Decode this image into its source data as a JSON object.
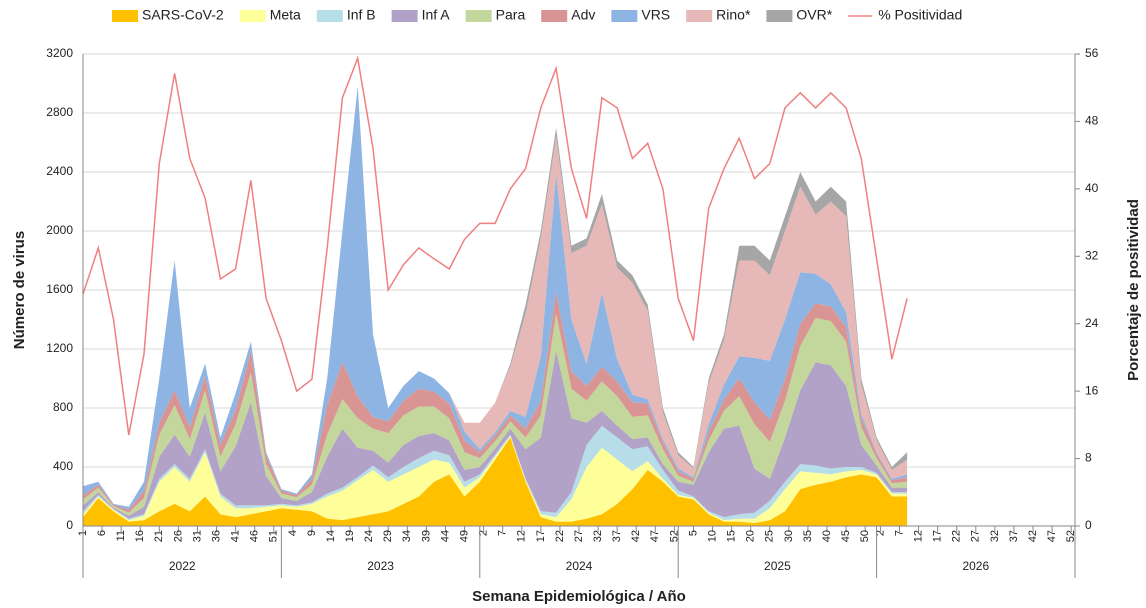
{
  "chart_data": {
    "type": "stacked-area",
    "y_label": "Número de virus",
    "y2_label": "Porcentaje de positividad",
    "x_label": "Semana Epidemiológica / Año",
    "grid": true,
    "legend": "top",
    "xlim": [
      0,
      260
    ],
    "ylim": [
      0,
      3200
    ],
    "yticks": [
      0,
      400,
      800,
      1200,
      1600,
      2000,
      2400,
      2800,
      3200
    ],
    "y2lim": [
      0,
      56
    ],
    "y2ticks": [
      0,
      8,
      16,
      24,
      32,
      40,
      48,
      56
    ],
    "x_groups": [
      {
        "label": "2022",
        "start": 0,
        "end": 52
      },
      {
        "label": "2023",
        "start": 52,
        "end": 104
      },
      {
        "label": "2024",
        "start": 104,
        "end": 156
      },
      {
        "label": "2025",
        "start": 156,
        "end": 208
      },
      {
        "label": "2026",
        "start": 208,
        "end": 260
      }
    ],
    "xticks": [
      {
        "value": 0,
        "label": "1"
      },
      {
        "value": 5,
        "label": "6"
      },
      {
        "value": 10,
        "label": "11"
      },
      {
        "value": 15,
        "label": "16"
      },
      {
        "value": 20,
        "label": "21"
      },
      {
        "value": 25,
        "label": "26"
      },
      {
        "value": 30,
        "label": "31"
      },
      {
        "value": 35,
        "label": "36"
      },
      {
        "value": 40,
        "label": "41"
      },
      {
        "value": 45,
        "label": "46"
      },
      {
        "value": 50,
        "label": "51"
      },
      {
        "value": 55,
        "label": "4"
      },
      {
        "value": 60,
        "label": "9"
      },
      {
        "value": 65,
        "label": "14"
      },
      {
        "value": 70,
        "label": "19"
      },
      {
        "value": 75,
        "label": "24"
      },
      {
        "value": 80,
        "label": "29"
      },
      {
        "value": 85,
        "label": "34"
      },
      {
        "value": 90,
        "label": "39"
      },
      {
        "value": 95,
        "label": "44"
      },
      {
        "value": 100,
        "label": "49"
      },
      {
        "value": 105,
        "label": "2"
      },
      {
        "value": 110,
        "label": "7"
      },
      {
        "value": 115,
        "label": "12"
      },
      {
        "value": 120,
        "label": "17"
      },
      {
        "value": 125,
        "label": "22"
      },
      {
        "value": 130,
        "label": "27"
      },
      {
        "value": 135,
        "label": "32"
      },
      {
        "value": 140,
        "label": "37"
      },
      {
        "value": 145,
        "label": "42"
      },
      {
        "value": 150,
        "label": "47"
      },
      {
        "value": 155,
        "label": "52"
      },
      {
        "value": 160,
        "label": "5"
      },
      {
        "value": 165,
        "label": "10"
      },
      {
        "value": 170,
        "label": "15"
      },
      {
        "value": 175,
        "label": "20"
      },
      {
        "value": 180,
        "label": "25"
      },
      {
        "value": 185,
        "label": "30"
      },
      {
        "value": 190,
        "label": "35"
      },
      {
        "value": 195,
        "label": "40"
      },
      {
        "value": 200,
        "label": "45"
      },
      {
        "value": 205,
        "label": "50"
      },
      {
        "value": 209,
        "label": "2"
      },
      {
        "value": 214,
        "label": "7"
      },
      {
        "value": 219,
        "label": "12"
      },
      {
        "value": 224,
        "label": "17"
      },
      {
        "value": 229,
        "label": "22"
      },
      {
        "value": 234,
        "label": "27"
      },
      {
        "value": 239,
        "label": "32"
      },
      {
        "value": 244,
        "label": "37"
      },
      {
        "value": 249,
        "label": "42"
      },
      {
        "value": 254,
        "label": "47"
      },
      {
        "value": 259,
        "label": "52"
      }
    ],
    "x": [
      0,
      4,
      8,
      12,
      16,
      20,
      24,
      28,
      32,
      36,
      40,
      44,
      48,
      52,
      56,
      60,
      64,
      68,
      72,
      76,
      80,
      84,
      88,
      92,
      96,
      100,
      104,
      108,
      112,
      116,
      120,
      124,
      128,
      132,
      136,
      140,
      144,
      148,
      152,
      156,
      160,
      164,
      168,
      172,
      176,
      180,
      184,
      188,
      192,
      196,
      200,
      204,
      208,
      212,
      216
    ],
    "series": [
      {
        "name": "SARS-CoV-2",
        "color": "#ffc000",
        "values": [
          60,
          190,
          100,
          30,
          40,
          100,
          150,
          100,
          200,
          80,
          60,
          80,
          100,
          120,
          110,
          100,
          50,
          40,
          60,
          80,
          100,
          150,
          200,
          300,
          350,
          200,
          300,
          450,
          600,
          300,
          60,
          30,
          30,
          50,
          80,
          150,
          250,
          380,
          300,
          200,
          180,
          80,
          30,
          30,
          20,
          40,
          100,
          250,
          280,
          300,
          330,
          350,
          330,
          200,
          200
        ]
      },
      {
        "name": "Meta",
        "color": "#ffff99",
        "values": [
          20,
          10,
          10,
          10,
          30,
          200,
          250,
          200,
          300,
          120,
          60,
          40,
          30,
          20,
          20,
          50,
          150,
          200,
          250,
          300,
          200,
          200,
          200,
          150,
          80,
          60,
          30,
          20,
          10,
          10,
          20,
          30,
          150,
          350,
          450,
          300,
          120,
          60,
          20,
          10,
          10,
          10,
          10,
          20,
          30,
          80,
          150,
          120,
          80,
          50,
          40,
          30,
          20,
          20,
          20
        ]
      },
      {
        "name": "Inf B",
        "color": "#b7dee8",
        "values": [
          20,
          10,
          5,
          10,
          10,
          20,
          20,
          20,
          20,
          20,
          20,
          20,
          10,
          10,
          10,
          10,
          20,
          20,
          20,
          30,
          30,
          50,
          60,
          60,
          50,
          40,
          20,
          15,
          10,
          10,
          20,
          30,
          50,
          150,
          150,
          150,
          150,
          100,
          60,
          30,
          10,
          10,
          20,
          30,
          40,
          50,
          50,
          50,
          50,
          40,
          30,
          20,
          10,
          10,
          10
        ]
      },
      {
        "name": "Inf A",
        "color": "#b3a2c7",
        "values": [
          40,
          20,
          10,
          20,
          50,
          150,
          200,
          150,
          250,
          150,
          400,
          700,
          200,
          40,
          30,
          70,
          250,
          400,
          200,
          100,
          100,
          150,
          150,
          120,
          100,
          80,
          50,
          40,
          40,
          200,
          500,
          1100,
          500,
          150,
          100,
          80,
          70,
          60,
          40,
          60,
          80,
          400,
          600,
          600,
          300,
          150,
          300,
          500,
          700,
          700,
          550,
          150,
          50,
          30,
          30
        ]
      },
      {
        "name": "Para",
        "color": "#c3d69b",
        "values": [
          40,
          30,
          10,
          20,
          60,
          150,
          200,
          120,
          150,
          100,
          150,
          200,
          80,
          30,
          25,
          50,
          150,
          200,
          200,
          150,
          200,
          200,
          200,
          180,
          150,
          120,
          60,
          50,
          50,
          80,
          150,
          250,
          200,
          150,
          200,
          200,
          150,
          150,
          100,
          40,
          20,
          80,
          120,
          200,
          300,
          250,
          250,
          300,
          300,
          300,
          300,
          120,
          50,
          30,
          40
        ]
      },
      {
        "name": "Adv",
        "color": "#d99594",
        "values": [
          30,
          20,
          10,
          20,
          50,
          80,
          100,
          80,
          100,
          80,
          100,
          150,
          60,
          20,
          15,
          40,
          200,
          250,
          150,
          80,
          80,
          100,
          120,
          100,
          100,
          80,
          40,
          40,
          40,
          60,
          100,
          150,
          120,
          100,
          100,
          100,
          100,
          80,
          50,
          30,
          20,
          60,
          80,
          120,
          150,
          150,
          150,
          150,
          100,
          100,
          100,
          60,
          30,
          20,
          30
        ]
      },
      {
        "name": "VRS",
        "color": "#8db4e2",
        "values": [
          60,
          20,
          5,
          20,
          60,
          300,
          880,
          130,
          80,
          50,
          110,
          60,
          20,
          10,
          10,
          30,
          180,
          890,
          2100,
          560,
          90,
          100,
          120,
          90,
          70,
          60,
          20,
          20,
          30,
          80,
          300,
          800,
          350,
          150,
          500,
          150,
          50,
          30,
          20,
          20,
          10,
          50,
          100,
          150,
          300,
          400,
          400,
          350,
          200,
          150,
          100,
          30,
          10,
          10,
          20
        ]
      },
      {
        "name": "Rino*",
        "color": "#e6b9b8",
        "values": [
          0,
          0,
          0,
          0,
          0,
          0,
          0,
          0,
          0,
          0,
          0,
          0,
          0,
          0,
          0,
          0,
          0,
          0,
          0,
          0,
          0,
          0,
          0,
          0,
          0,
          60,
          180,
          200,
          300,
          700,
          800,
          250,
          450,
          800,
          600,
          620,
          760,
          600,
          180,
          90,
          60,
          280,
          300,
          650,
          660,
          580,
          600,
          580,
          400,
          560,
          650,
          200,
          80,
          60,
          100
        ]
      },
      {
        "name": "OVR*",
        "color": "#a6a6a6",
        "values": [
          0,
          0,
          0,
          0,
          0,
          0,
          0,
          0,
          0,
          0,
          0,
          0,
          0,
          0,
          0,
          0,
          0,
          0,
          0,
          0,
          0,
          0,
          0,
          0,
          0,
          0,
          0,
          0,
          20,
          60,
          50,
          60,
          50,
          50,
          70,
          50,
          50,
          40,
          30,
          20,
          10,
          30,
          40,
          100,
          100,
          100,
          100,
          100,
          90,
          100,
          100,
          40,
          20,
          20,
          50
        ]
      },
      {
        "name": "% Positividad",
        "color": "#f08080",
        "type": "line",
        "axis": "y2",
        "values": [
          27.5,
          33,
          24.5,
          10.8,
          20.4,
          43,
          53.7,
          43.6,
          38.9,
          29.3,
          30.5,
          41,
          27,
          22,
          16,
          17.4,
          33,
          50.8,
          55.5,
          44.8,
          28,
          31,
          33,
          31.7,
          30.5,
          34,
          35.9,
          35.9,
          40,
          42.4,
          49.6,
          54.3,
          42.4,
          36.5,
          50.8,
          49.6,
          43.6,
          45.4,
          40,
          27,
          22,
          37.7,
          42.4,
          46,
          41.2,
          43,
          49.6,
          51.4,
          49.6,
          51.4,
          49.6,
          43.6,
          31.7,
          19.8,
          27
        ]
      }
    ]
  }
}
